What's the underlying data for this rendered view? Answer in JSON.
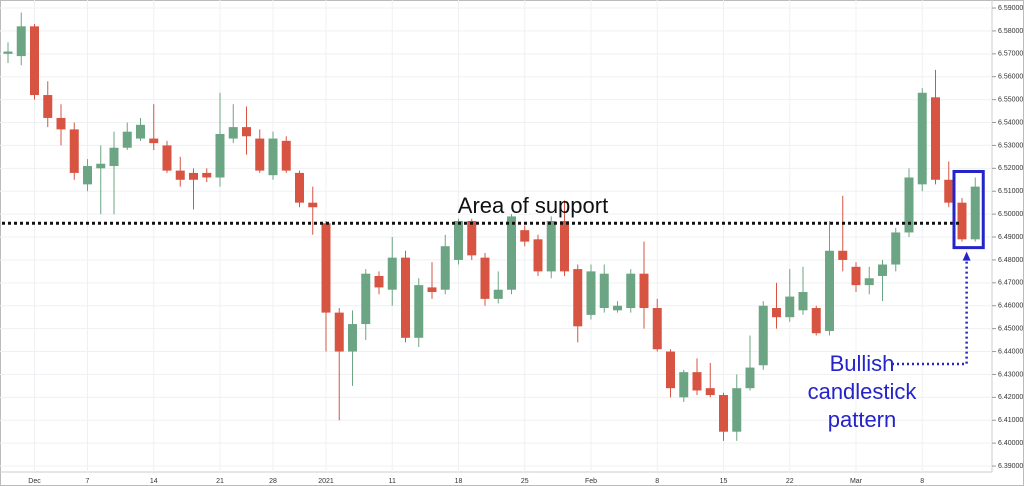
{
  "chart_data": {
    "type": "candlestick",
    "categories": [
      null,
      null,
      "Dec",
      null,
      null,
      null,
      "7",
      null,
      null,
      null,
      null,
      "14",
      null,
      null,
      null,
      null,
      "21",
      null,
      null,
      null,
      "28",
      null,
      null,
      null,
      "2021",
      null,
      null,
      null,
      null,
      "11",
      null,
      null,
      null,
      null,
      "18",
      null,
      null,
      null,
      null,
      "25",
      null,
      null,
      null,
      null,
      "Feb",
      null,
      null,
      null,
      null,
      "8",
      null,
      null,
      null,
      null,
      "15",
      null,
      null,
      null,
      null,
      "22",
      null,
      null,
      null,
      null,
      "Mar",
      null,
      null,
      null,
      null,
      "8",
      null,
      null,
      null,
      null
    ],
    "series": [
      {
        "up_color": "#6ba583",
        "down_color": "#d75442",
        "open": [
          6.57,
          6.569,
          6.582,
          6.552,
          6.542,
          6.537,
          6.513,
          6.52,
          6.521,
          6.529,
          6.533,
          6.533,
          6.53,
          6.519,
          6.518,
          6.518,
          6.516,
          6.533,
          6.538,
          6.533,
          6.517,
          6.532,
          6.518,
          6.505,
          6.496,
          6.457,
          6.44,
          6.452,
          6.473,
          6.467,
          6.481,
          6.446,
          6.468,
          6.467,
          6.48,
          6.497,
          6.481,
          6.463,
          6.467,
          6.493,
          6.489,
          6.475,
          6.497,
          6.476,
          6.456,
          6.459,
          6.458,
          6.459,
          6.474,
          6.459,
          6.44,
          6.42,
          6.431,
          6.424,
          6.421,
          6.405,
          6.424,
          6.434,
          6.459,
          6.455,
          6.458,
          6.459,
          6.449,
          6.484,
          6.477,
          6.469,
          6.473,
          6.478,
          6.492,
          6.513,
          6.551,
          6.515,
          6.505,
          6.489
        ],
        "high": [
          6.575,
          6.588,
          6.583,
          6.558,
          6.548,
          6.54,
          6.524,
          6.53,
          6.536,
          6.54,
          6.542,
          6.548,
          6.532,
          6.525,
          6.52,
          6.52,
          6.553,
          6.548,
          6.547,
          6.537,
          6.536,
          6.534,
          6.519,
          6.512,
          6.497,
          6.459,
          6.458,
          6.476,
          6.475,
          6.49,
          6.484,
          6.472,
          6.479,
          6.491,
          6.498,
          6.498,
          6.483,
          6.475,
          6.5,
          6.495,
          6.491,
          6.499,
          6.506,
          6.478,
          6.478,
          6.478,
          6.462,
          6.476,
          6.488,
          6.463,
          6.441,
          6.432,
          6.437,
          6.435,
          6.422,
          6.43,
          6.447,
          6.462,
          6.47,
          6.476,
          6.477,
          6.46,
          6.497,
          6.508,
          6.479,
          6.477,
          6.48,
          6.494,
          6.52,
          6.555,
          6.563,
          6.523,
          6.507,
          6.516
        ],
        "low": [
          6.566,
          6.565,
          6.55,
          6.538,
          6.53,
          6.515,
          6.51,
          6.5,
          6.5,
          6.528,
          6.532,
          6.528,
          6.518,
          6.512,
          6.502,
          6.514,
          6.512,
          6.531,
          6.526,
          6.518,
          6.515,
          6.518,
          6.503,
          6.491,
          6.44,
          6.41,
          6.425,
          6.445,
          6.465,
          6.46,
          6.444,
          6.442,
          6.463,
          6.465,
          6.478,
          6.48,
          6.46,
          6.461,
          6.465,
          6.486,
          6.473,
          6.472,
          6.473,
          6.444,
          6.454,
          6.457,
          6.457,
          6.457,
          6.45,
          6.44,
          6.42,
          6.418,
          6.421,
          6.42,
          6.401,
          6.401,
          6.423,
          6.432,
          6.45,
          6.453,
          6.456,
          6.447,
          6.447,
          6.475,
          6.466,
          6.465,
          6.462,
          6.475,
          6.49,
          6.51,
          6.513,
          6.503,
          6.488,
          6.488
        ],
        "close": [
          6.571,
          6.582,
          6.552,
          6.542,
          6.537,
          6.518,
          6.521,
          6.522,
          6.529,
          6.536,
          6.539,
          6.531,
          6.519,
          6.515,
          6.515,
          6.516,
          6.535,
          6.538,
          6.534,
          6.519,
          6.533,
          6.519,
          6.505,
          6.503,
          6.457,
          6.44,
          6.452,
          6.474,
          6.468,
          6.481,
          6.446,
          6.469,
          6.466,
          6.486,
          6.497,
          6.482,
          6.463,
          6.467,
          6.499,
          6.488,
          6.475,
          6.497,
          6.475,
          6.451,
          6.475,
          6.474,
          6.46,
          6.474,
          6.459,
          6.441,
          6.424,
          6.431,
          6.423,
          6.421,
          6.405,
          6.424,
          6.433,
          6.46,
          6.455,
          6.464,
          6.466,
          6.448,
          6.484,
          6.48,
          6.469,
          6.472,
          6.478,
          6.492,
          6.516,
          6.553,
          6.515,
          6.505,
          6.489,
          6.512
        ]
      }
    ],
    "ylim": [
      6.3874,
      6.5935
    ],
    "yticks": [
      {
        "value": 6.39,
        "label": "6.39000"
      },
      {
        "value": 6.4,
        "label": "6.40000"
      },
      {
        "value": 6.41,
        "label": "6.41000"
      },
      {
        "value": 6.42,
        "label": "6.42000"
      },
      {
        "value": 6.43,
        "label": "6.43000"
      },
      {
        "value": 6.44,
        "label": "6.44000"
      },
      {
        "value": 6.45,
        "label": "6.45000"
      },
      {
        "value": 6.46,
        "label": "6.46000"
      },
      {
        "value": 6.47,
        "label": "6.47000"
      },
      {
        "value": 6.48,
        "label": "6.48000"
      },
      {
        "value": 6.49,
        "label": "6.49000"
      },
      {
        "value": 6.5,
        "label": "6.50000"
      },
      {
        "value": 6.51,
        "label": "6.51000"
      },
      {
        "value": 6.52,
        "label": "6.52000"
      },
      {
        "value": 6.53,
        "label": "6.53000"
      },
      {
        "value": 6.54,
        "label": "6.54000"
      },
      {
        "value": 6.55,
        "label": "6.55000"
      },
      {
        "value": 6.56,
        "label": "6.56000"
      },
      {
        "value": 6.57,
        "label": "6.57000"
      },
      {
        "value": 6.58,
        "label": "6.58000"
      },
      {
        "value": 6.59,
        "label": "6.59000"
      }
    ],
    "grid": true,
    "annotations": {
      "support_label": "Area of support",
      "support_level": 6.496,
      "pattern_label": [
        "Bullish",
        "candlestick",
        "pattern"
      ],
      "pattern_start": 72,
      "pattern_end": 73,
      "pattern_color": "#2424c8"
    }
  }
}
